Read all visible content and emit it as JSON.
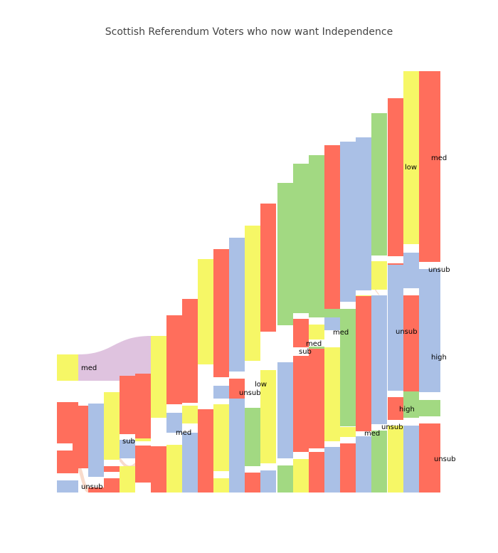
{
  "chart_data": {
    "type": "sankey",
    "title": "Scottish Referendum Voters who now want Independence",
    "colors": {
      "yellow": "#f6f766",
      "red": "#ff6e5c",
      "blue": "#aac0e6",
      "green": "#a2d982",
      "link": "#d9b9d9"
    },
    "labels": {
      "med": "med",
      "unsub": "unsub",
      "low": "low",
      "high": "high",
      "sub": "sub"
    },
    "nodes": [
      {
        "id": "med0",
        "color": "yellow",
        "label": "med"
      },
      {
        "id": "hub1",
        "color": "red",
        "label": ""
      },
      {
        "id": "n2",
        "color": "red",
        "label": ""
      },
      {
        "id": "n3",
        "color": "blue",
        "label": ""
      },
      {
        "id": "n4",
        "color": "red",
        "label": "unsub"
      },
      {
        "id": "n5",
        "color": "blue",
        "label": ""
      },
      {
        "id": "n6",
        "color": "yellow",
        "label": ""
      },
      {
        "id": "n7",
        "color": "blue",
        "label": "sub"
      },
      {
        "id": "n8",
        "color": "red",
        "label": ""
      },
      {
        "id": "n9",
        "color": "yellow",
        "label": ""
      },
      {
        "id": "n10",
        "color": "red",
        "label": ""
      },
      {
        "id": "n11",
        "color": "red",
        "label": ""
      },
      {
        "id": "n12",
        "color": "yellow",
        "label": ""
      },
      {
        "id": "n13",
        "color": "yellow",
        "label": ""
      },
      {
        "id": "n14",
        "color": "red",
        "label": ""
      },
      {
        "id": "n15",
        "color": "blue",
        "label": "med"
      },
      {
        "id": "n16",
        "color": "red",
        "label": ""
      },
      {
        "id": "n17",
        "color": "yellow",
        "label": ""
      },
      {
        "id": "n18",
        "color": "red",
        "label": ""
      },
      {
        "id": "n19",
        "color": "yellow",
        "label": ""
      },
      {
        "id": "n20",
        "color": "red",
        "label": ""
      },
      {
        "id": "n21",
        "color": "blue",
        "label": "unsub"
      },
      {
        "id": "n22",
        "color": "blue",
        "label": ""
      },
      {
        "id": "n23",
        "color": "yellow",
        "label": "low"
      },
      {
        "id": "n24",
        "color": "green",
        "label": ""
      },
      {
        "id": "n25",
        "color": "red",
        "label": ""
      },
      {
        "id": "n26",
        "color": "yellow",
        "label": ""
      },
      {
        "id": "n27",
        "color": "green",
        "label": "sub"
      },
      {
        "id": "n28",
        "color": "blue",
        "label": ""
      },
      {
        "id": "n29",
        "color": "red",
        "label": "med"
      },
      {
        "id": "n30",
        "color": "green",
        "label": ""
      },
      {
        "id": "n31",
        "color": "yellow",
        "label": "med"
      },
      {
        "id": "n32",
        "color": "red",
        "label": ""
      },
      {
        "id": "n33",
        "color": "green",
        "label": ""
      },
      {
        "id": "n34",
        "color": "red",
        "label": ""
      },
      {
        "id": "n35",
        "color": "yellow",
        "label": ""
      },
      {
        "id": "n36",
        "color": "blue",
        "label": "med"
      },
      {
        "id": "n37",
        "color": "green",
        "label": ""
      },
      {
        "id": "n38",
        "color": "blue",
        "label": "unsub"
      },
      {
        "id": "n39",
        "color": "red",
        "label": "unsub"
      },
      {
        "id": "n40",
        "color": "green",
        "label": "high"
      },
      {
        "id": "n41",
        "color": "yellow",
        "label": "low"
      },
      {
        "id": "n42",
        "color": "blue",
        "label": "unsub"
      },
      {
        "id": "n43",
        "color": "red",
        "label": "med"
      },
      {
        "id": "n44",
        "color": "blue",
        "label": "high"
      },
      {
        "id": "n45",
        "color": "red",
        "label": "unsub"
      }
    ]
  }
}
